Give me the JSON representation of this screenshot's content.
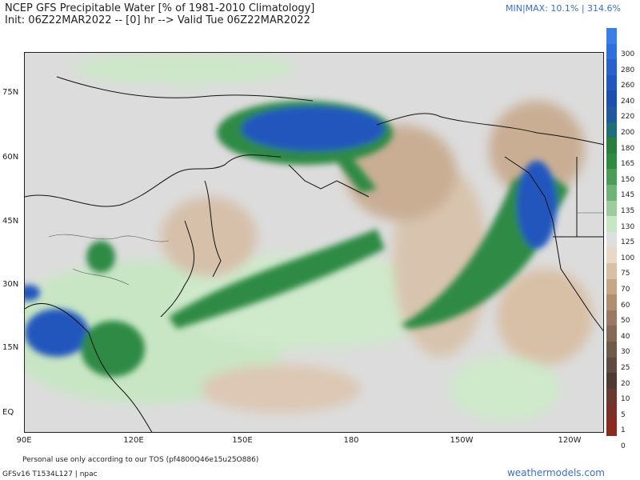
{
  "header": {
    "line1": "NCEP GFS Precipitable Water [% of 1981-2010 Climatology]",
    "line2": "Init: 06Z22MAR2022 -- [0] hr --> Valid Tue 06Z22MAR2022",
    "minmax": "MIN|MAX: 10.1% | 314.6%"
  },
  "axes": {
    "lat_labels": [
      "75N",
      "60N",
      "45N",
      "30N",
      "15N",
      "EQ"
    ],
    "lon_labels": [
      "90E",
      "120E",
      "150E",
      "180",
      "150W",
      "120W"
    ]
  },
  "colorbar": {
    "labels": [
      "300",
      "280",
      "260",
      "240",
      "220",
      "200",
      "180",
      "165",
      "150",
      "145",
      "135",
      "130",
      "125",
      "100",
      "75",
      "70",
      "60",
      "50",
      "40",
      "30",
      "25",
      "20",
      "10",
      "5",
      "1",
      "0"
    ],
    "colors": [
      "#3a7ee8",
      "#2f6fdc",
      "#2a62cc",
      "#2357bd",
      "#1f4fae",
      "#1f5a9e",
      "#1f6f7a",
      "#2a7f3f",
      "#2f8a44",
      "#4a9c58",
      "#6fb27a",
      "#9ccc9e",
      "#c6e6c4",
      "#dedede",
      "#ead8c6",
      "#d9bfa6",
      "#c6a688",
      "#b08e72",
      "#9a7a62",
      "#856a56",
      "#705a4a",
      "#5e4c40",
      "#4e3c34",
      "#6a3a30",
      "#7a3228",
      "#8a2a22"
    ]
  },
  "footer": {
    "tos": "Personal use only according to our TOS (pf4800Q46e15u25O886)",
    "version": "GFSv16 T1534L127 | npac",
    "site": "weathermodels.com"
  }
}
